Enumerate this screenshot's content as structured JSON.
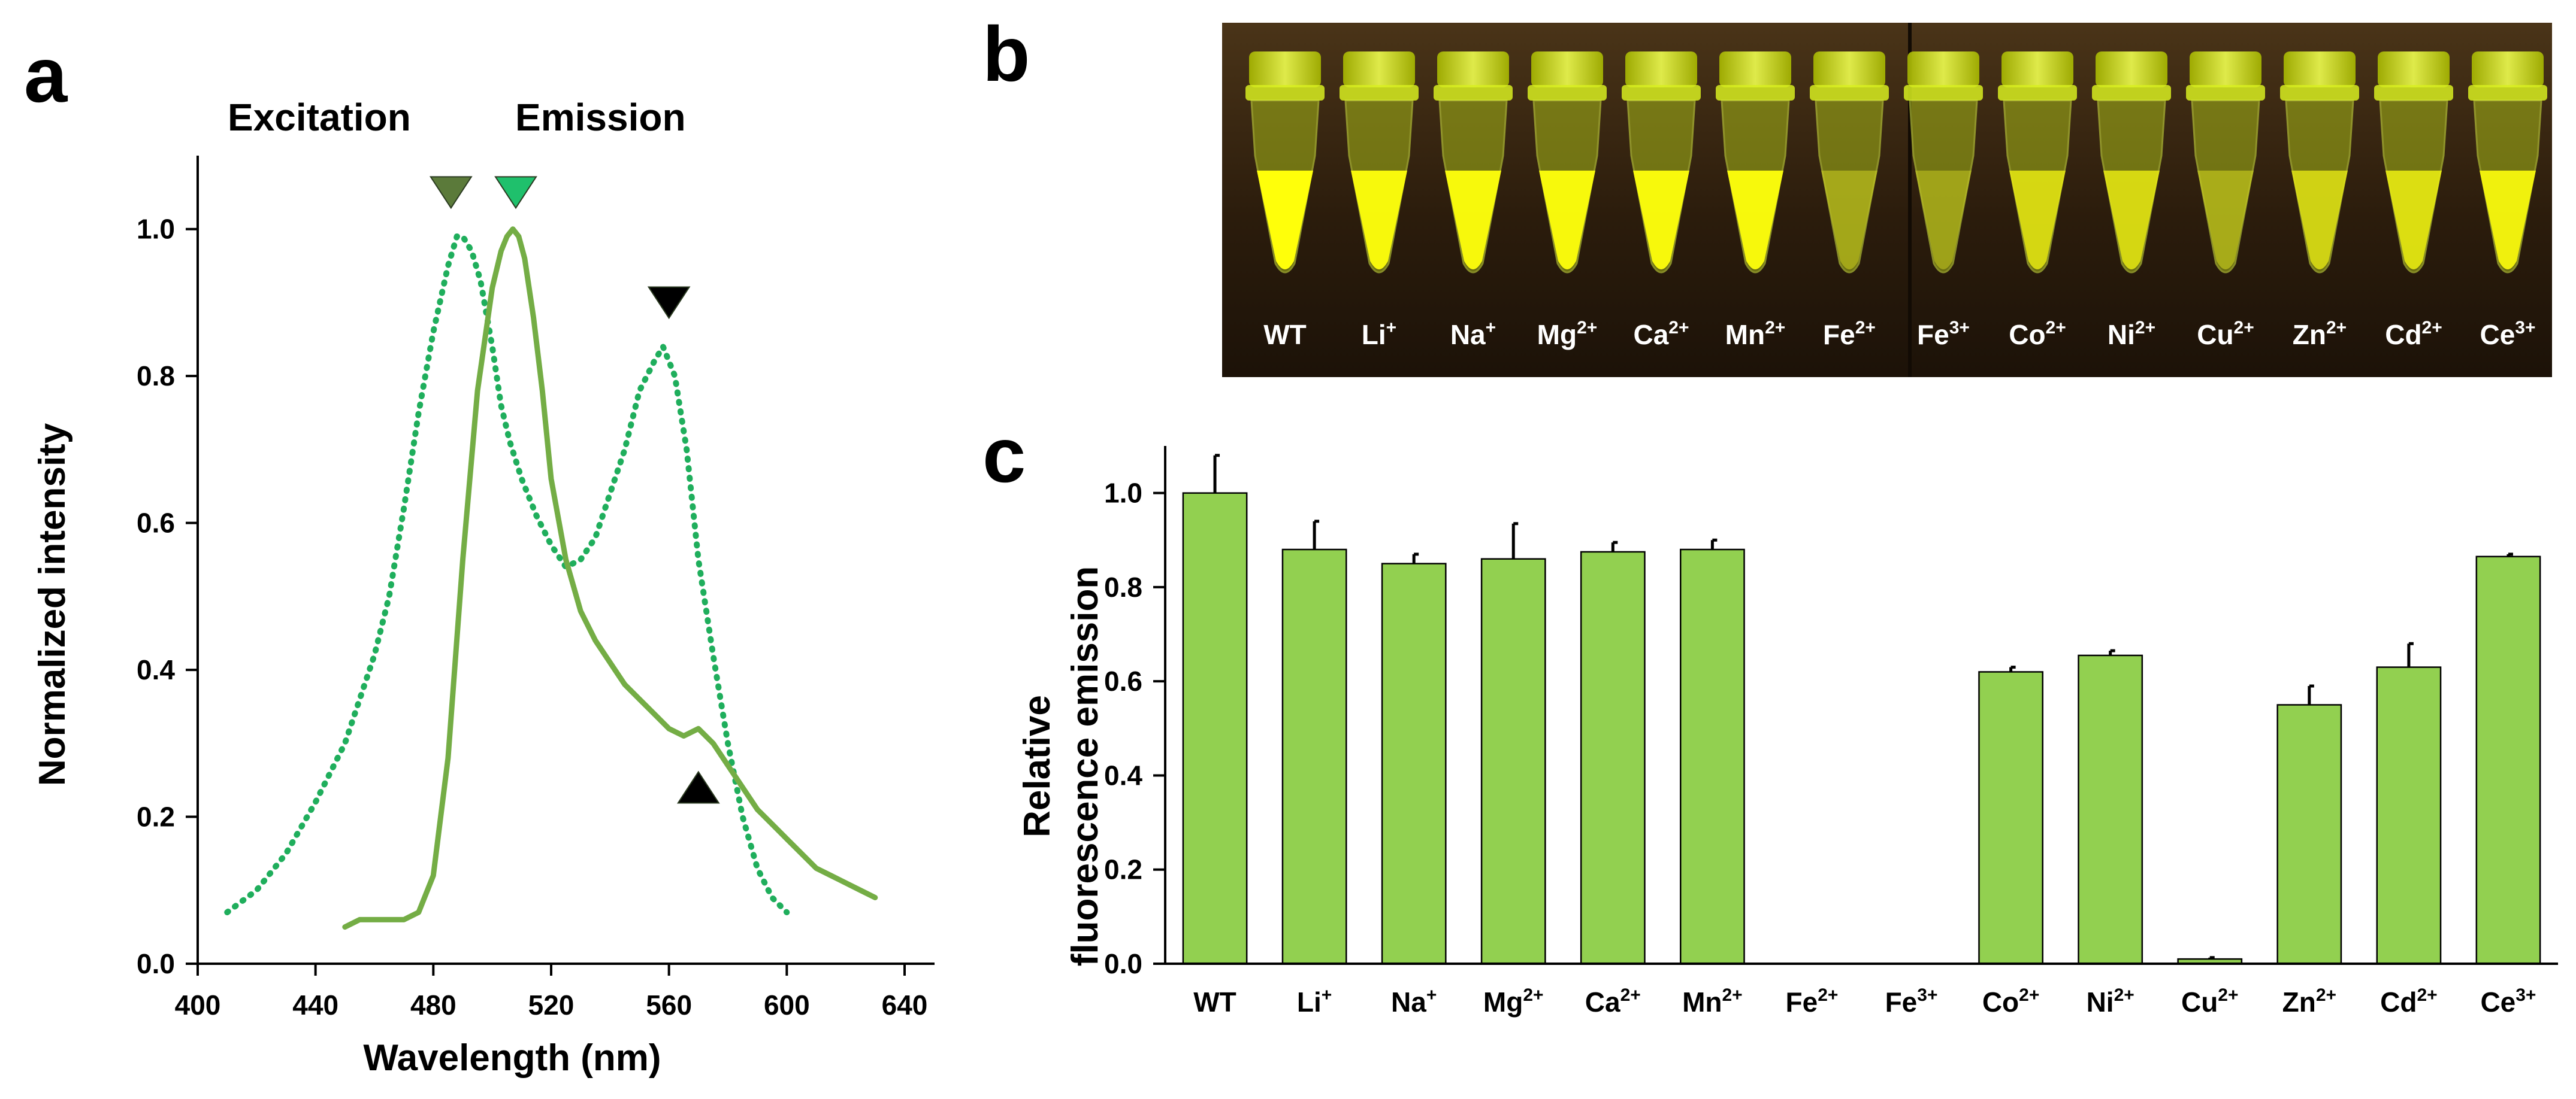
{
  "panels": {
    "a": "a",
    "b": "b",
    "c": "c"
  },
  "colors": {
    "excitation_title": "#5f8a3a",
    "emission_title": "#7ab648",
    "excitation_line": "#1fae5c",
    "emission_line": "#74ad45",
    "bar_fill": "#92d050",
    "marker_excitation": "#5b7a3a",
    "marker_emission": "#1fc06c",
    "marker_black": "#000000"
  },
  "chart_data": [
    {
      "type": "line",
      "title_excitation": "Excitation",
      "title_emission": "Emission",
      "xlabel": "Wavelength (nm)",
      "ylabel": "Normalized intensity",
      "xlim": [
        400,
        650
      ],
      "ylim": [
        0,
        1.1
      ],
      "xticks": [
        400,
        440,
        480,
        520,
        560,
        600,
        640
      ],
      "yticks": [
        "0.0",
        "0.2",
        "0.4",
        "0.6",
        "0.8",
        "1.0"
      ],
      "series": [
        {
          "name": "Excitation",
          "style": "dotted",
          "x": [
            410,
            420,
            430,
            440,
            450,
            460,
            465,
            470,
            475,
            480,
            485,
            488,
            490,
            493,
            496,
            500,
            503,
            506,
            510,
            515,
            520,
            525,
            530,
            535,
            540,
            545,
            550,
            555,
            558,
            562,
            566,
            570,
            575,
            580,
            585,
            590,
            595,
            600
          ],
          "y": [
            0.07,
            0.1,
            0.15,
            0.22,
            0.3,
            0.42,
            0.5,
            0.62,
            0.75,
            0.86,
            0.95,
            0.99,
            0.99,
            0.97,
            0.93,
            0.84,
            0.76,
            0.71,
            0.66,
            0.61,
            0.57,
            0.54,
            0.55,
            0.58,
            0.64,
            0.7,
            0.78,
            0.82,
            0.84,
            0.8,
            0.7,
            0.55,
            0.42,
            0.3,
            0.2,
            0.13,
            0.09,
            0.07
          ]
        },
        {
          "name": "Emission",
          "style": "solid",
          "x": [
            450,
            455,
            460,
            465,
            470,
            475,
            480,
            485,
            490,
            495,
            500,
            503,
            505,
            507,
            509,
            511,
            514,
            517,
            520,
            525,
            530,
            535,
            540,
            545,
            550,
            555,
            560,
            565,
            570,
            575,
            580,
            585,
            590,
            595,
            600,
            605,
            610,
            615,
            620,
            625,
            630
          ],
          "y": [
            0.05,
            0.06,
            0.06,
            0.06,
            0.06,
            0.07,
            0.12,
            0.28,
            0.55,
            0.78,
            0.92,
            0.97,
            0.99,
            1.0,
            0.99,
            0.96,
            0.88,
            0.78,
            0.66,
            0.55,
            0.48,
            0.44,
            0.41,
            0.38,
            0.36,
            0.34,
            0.32,
            0.31,
            0.32,
            0.3,
            0.27,
            0.24,
            0.21,
            0.19,
            0.17,
            0.15,
            0.13,
            0.12,
            0.11,
            0.1,
            0.09
          ]
        }
      ],
      "markers": [
        {
          "name": "excitation-peak-marker",
          "x": 486,
          "y": 1.05,
          "direction": "down",
          "color": "#5b7a3a"
        },
        {
          "name": "emission-peak-marker",
          "x": 508,
          "y": 1.05,
          "direction": "down",
          "color": "#1fc06c"
        },
        {
          "name": "excitation-shoulder-marker",
          "x": 560,
          "y": 0.9,
          "direction": "down",
          "color": "#000000"
        },
        {
          "name": "emission-shoulder-marker",
          "x": 570,
          "y": 0.24,
          "direction": "up",
          "color": "#000000"
        }
      ]
    },
    {
      "type": "bar",
      "ylabel_line1": "Relative",
      "ylabel_line2": "fluorescence emission",
      "ylim": [
        0,
        1.1
      ],
      "yticks": [
        "0.0",
        "0.2",
        "0.4",
        "0.6",
        "0.8",
        "1.0"
      ],
      "categories": [
        {
          "base": "WT",
          "sup": ""
        },
        {
          "base": "Li",
          "sup": "+"
        },
        {
          "base": "Na",
          "sup": "+"
        },
        {
          "base": "Mg",
          "sup": "2+"
        },
        {
          "base": "Ca",
          "sup": "2+"
        },
        {
          "base": "Mn",
          "sup": "2+"
        },
        {
          "base": "Fe",
          "sup": "2+"
        },
        {
          "base": "Fe",
          "sup": "3+"
        },
        {
          "base": "Co",
          "sup": "2+"
        },
        {
          "base": "Ni",
          "sup": "2+"
        },
        {
          "base": "Cu",
          "sup": "2+"
        },
        {
          "base": "Zn",
          "sup": "2+"
        },
        {
          "base": "Cd",
          "sup": "2+"
        },
        {
          "base": "Ce",
          "sup": "3+"
        }
      ],
      "values": [
        1.0,
        0.88,
        0.85,
        0.86,
        0.875,
        0.88,
        0.0,
        0.0,
        0.62,
        0.655,
        0.01,
        0.55,
        0.63,
        0.865
      ],
      "errors": [
        0.08,
        0.06,
        0.02,
        0.075,
        0.02,
        0.02,
        0.0,
        0.0,
        0.01,
        0.01,
        0.003,
        0.04,
        0.05,
        0.005
      ]
    }
  ],
  "photo": {
    "tubes": [
      {
        "base": "WT",
        "sup": "",
        "glow": 1.0
      },
      {
        "base": "Li",
        "sup": "+",
        "glow": 0.95
      },
      {
        "base": "Na",
        "sup": "+",
        "glow": 0.95
      },
      {
        "base": "Mg",
        "sup": "2+",
        "glow": 0.95
      },
      {
        "base": "Ca",
        "sup": "2+",
        "glow": 0.95
      },
      {
        "base": "Mn",
        "sup": "2+",
        "glow": 0.95
      },
      {
        "base": "Fe",
        "sup": "2+",
        "glow": 0.25
      },
      {
        "base": "Fe",
        "sup": "3+",
        "glow": 0.2
      },
      {
        "base": "Co",
        "sup": "2+",
        "glow": 0.7
      },
      {
        "base": "Ni",
        "sup": "2+",
        "glow": 0.7
      },
      {
        "base": "Cu",
        "sup": "2+",
        "glow": 0.3
      },
      {
        "base": "Zn",
        "sup": "2+",
        "glow": 0.65
      },
      {
        "base": "Cd",
        "sup": "2+",
        "glow": 0.75
      },
      {
        "base": "Ce",
        "sup": "3+",
        "glow": 0.9
      }
    ]
  }
}
